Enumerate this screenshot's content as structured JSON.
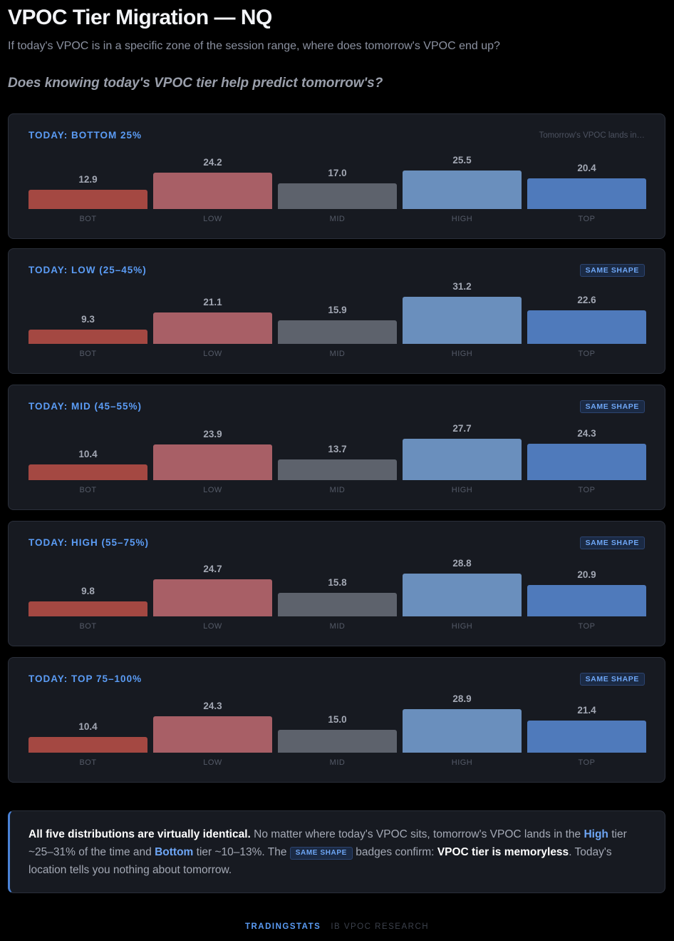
{
  "header": {
    "title": "VPOC Tier Migration — NQ",
    "subtitle": "If today's VPOC is in a specific zone of the session range, where does tomorrow's VPOC end up?",
    "question": "Does knowing today's VPOC tier help predict tomorrow's?"
  },
  "colors": {
    "BOT": "#a44842",
    "LOW": "#a85f66",
    "MID": "#5d626c",
    "HIGH": "#6a8fbd",
    "TOP": "#4f7abb"
  },
  "chart_data": [
    {
      "type": "bar",
      "title": "TODAY: BOTTOM 25%",
      "note": "Tomorrow's VPOC lands in…",
      "badge": "",
      "categories": [
        "BOT",
        "LOW",
        "MID",
        "HIGH",
        "TOP"
      ],
      "values": [
        12.9,
        24.2,
        17.0,
        25.5,
        20.4
      ],
      "labels": [
        "12.9",
        "24.2",
        "17.0",
        "25.5",
        "20.4"
      ]
    },
    {
      "type": "bar",
      "title": "TODAY: LOW (25–45%)",
      "note": "",
      "badge": "SAME SHAPE",
      "categories": [
        "BOT",
        "LOW",
        "MID",
        "HIGH",
        "TOP"
      ],
      "values": [
        9.3,
        21.1,
        15.9,
        31.2,
        22.6
      ],
      "labels": [
        "9.3",
        "21.1",
        "15.9",
        "31.2",
        "22.6"
      ]
    },
    {
      "type": "bar",
      "title": "TODAY: MID (45–55%)",
      "note": "",
      "badge": "SAME SHAPE",
      "categories": [
        "BOT",
        "LOW",
        "MID",
        "HIGH",
        "TOP"
      ],
      "values": [
        10.4,
        23.9,
        13.7,
        27.7,
        24.3
      ],
      "labels": [
        "10.4",
        "23.9",
        "13.7",
        "27.7",
        "24.3"
      ]
    },
    {
      "type": "bar",
      "title": "TODAY: HIGH (55–75%)",
      "note": "",
      "badge": "SAME SHAPE",
      "categories": [
        "BOT",
        "LOW",
        "MID",
        "HIGH",
        "TOP"
      ],
      "values": [
        9.8,
        24.7,
        15.8,
        28.8,
        20.9
      ],
      "labels": [
        "9.8",
        "24.7",
        "15.8",
        "28.8",
        "20.9"
      ]
    },
    {
      "type": "bar",
      "title": "TODAY: TOP 75–100%",
      "note": "",
      "badge": "SAME SHAPE",
      "categories": [
        "BOT",
        "LOW",
        "MID",
        "HIGH",
        "TOP"
      ],
      "values": [
        10.4,
        24.3,
        15.0,
        28.9,
        21.4
      ],
      "labels": [
        "10.4",
        "24.3",
        "15.0",
        "28.9",
        "21.4"
      ]
    }
  ],
  "callout": {
    "lead": "All five distributions are virtually identical.",
    "text1": " No matter where today's VPOC sits, tomorrow's VPOC lands in the ",
    "high": "High",
    "text2": " tier ~25–31% of the time and ",
    "bottom": "Bottom",
    "text3": " tier ~10–13%. The ",
    "badge": "SAME SHAPE",
    "text4": " badges confirm: ",
    "conclusion": "VPOC tier is memoryless",
    "text5": ". Today's location tells you nothing about tomorrow."
  },
  "footer": {
    "brand": "TRADINGSTATS",
    "sub": "IB VPOC RESEARCH"
  }
}
